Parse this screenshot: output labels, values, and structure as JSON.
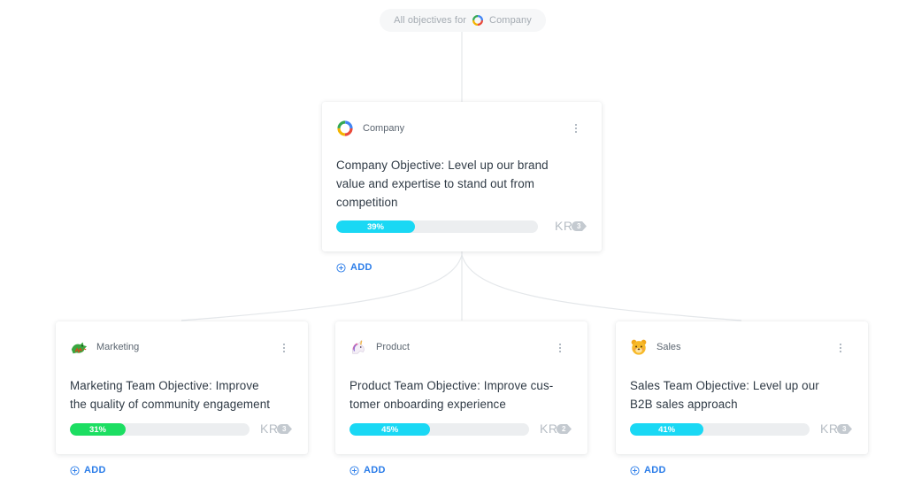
{
  "scope": {
    "label": "All objectives for",
    "org": "Company"
  },
  "company_card": {
    "owner": "Company",
    "title_lines": [
      "Company Objective: Level up our brand",
      "value and expertise to stand out from",
      "competition"
    ],
    "progress": 39,
    "progress_label": "39%",
    "progress_color": "#1ad8f4",
    "kr_label": "KR",
    "kr_count": "3",
    "add_label": "ADD"
  },
  "team_cards": [
    {
      "owner": "Marketing",
      "icon": "dragon-icon",
      "title_lines": [
        "Marketing Team Objective: Improve",
        "the quality of community engagement"
      ],
      "progress": 31,
      "progress_label": "31%",
      "progress_color": "#1cde62",
      "kr_label": "KR",
      "kr_count": "3",
      "add_label": "ADD"
    },
    {
      "owner": "Product",
      "icon": "unicorn-icon",
      "title_lines": [
        "Product Team Objective: Improve cus-",
        "tomer onboarding experience"
      ],
      "progress": 45,
      "progress_label": "45%",
      "progress_color": "#1ad8f4",
      "kr_label": "KR",
      "kr_count": "2",
      "add_label": "ADD"
    },
    {
      "owner": "Sales",
      "icon": "bear-icon",
      "title_lines": [
        "Sales Team Objective: Level up our",
        "B2B sales approach"
      ],
      "progress": 41,
      "progress_label": "41%",
      "progress_color": "#1ad8f4",
      "kr_label": "KR",
      "kr_count": "3",
      "add_label": "ADD"
    }
  ],
  "colors": {
    "accent": "#2b7de9",
    "bar_track": "#eceef0",
    "kr_grey": "#b6bdc4"
  }
}
